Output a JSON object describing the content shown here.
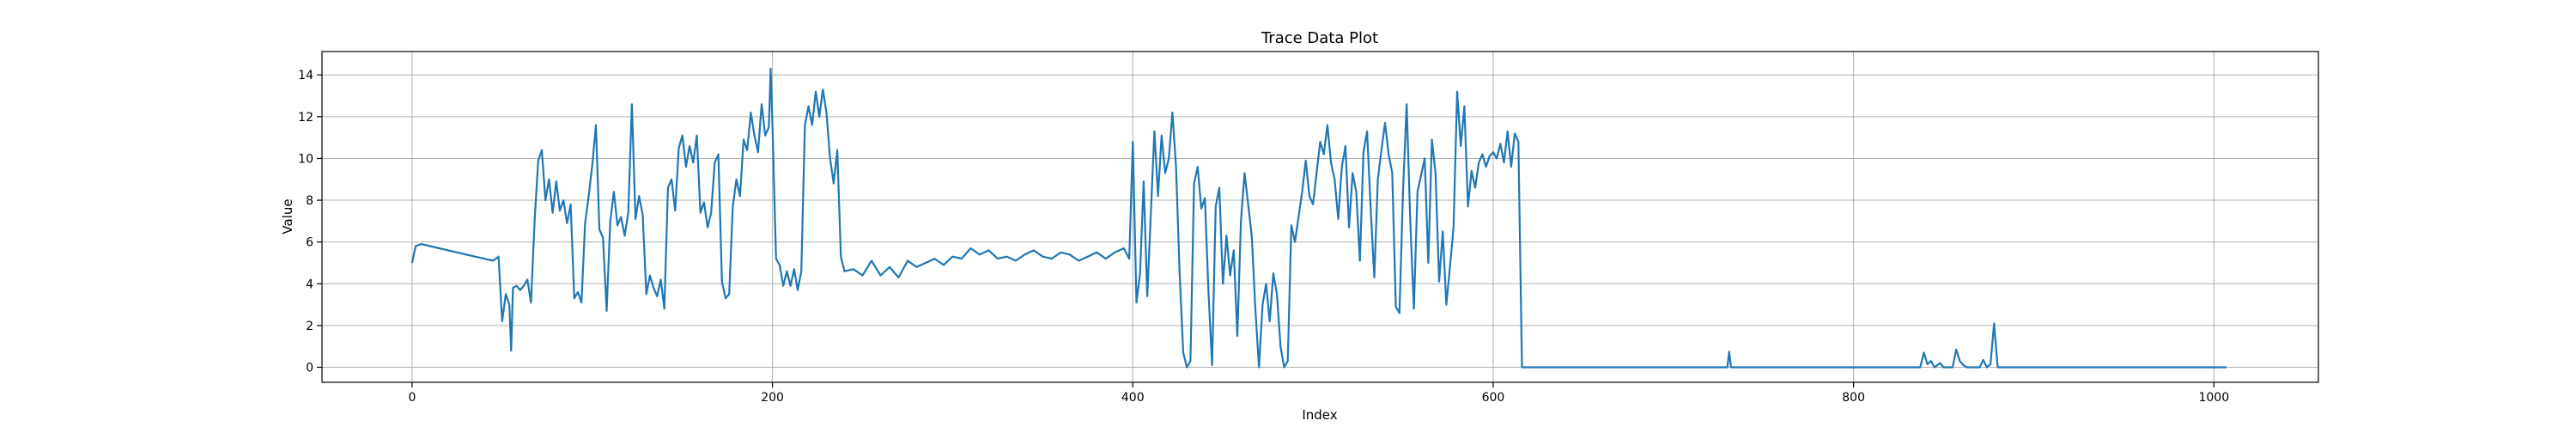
{
  "chart_data": {
    "type": "line",
    "title": "Trace Data Plot",
    "xlabel": "Index",
    "ylabel": "Value",
    "xlim": [
      -50,
      1058
    ],
    "ylim": [
      -0.72,
      15.12
    ],
    "x_ticks": [
      0,
      200,
      400,
      600,
      800,
      1000
    ],
    "y_ticks": [
      0,
      2,
      4,
      6,
      8,
      10,
      12,
      14
    ],
    "grid": true,
    "legend": "none",
    "series": [
      {
        "color": "#1f77b4",
        "points": [
          [
            0,
            5.0
          ],
          [
            2,
            5.8
          ],
          [
            5,
            5.9
          ],
          [
            10,
            5.8
          ],
          [
            15,
            5.7
          ],
          [
            20,
            5.6
          ],
          [
            25,
            5.5
          ],
          [
            30,
            5.4
          ],
          [
            35,
            5.3
          ],
          [
            40,
            5.2
          ],
          [
            45,
            5.1
          ],
          [
            48,
            5.3
          ],
          [
            50,
            2.2
          ],
          [
            52,
            3.5
          ],
          [
            54,
            3.0
          ],
          [
            55,
            0.8
          ],
          [
            56,
            3.8
          ],
          [
            58,
            3.9
          ],
          [
            60,
            3.7
          ],
          [
            62,
            3.9
          ],
          [
            64,
            4.2
          ],
          [
            66,
            3.1
          ],
          [
            68,
            7.0
          ],
          [
            70,
            9.9
          ],
          [
            72,
            10.4
          ],
          [
            74,
            8.0
          ],
          [
            76,
            9.0
          ],
          [
            78,
            7.4
          ],
          [
            80,
            8.9
          ],
          [
            82,
            7.5
          ],
          [
            84,
            8.0
          ],
          [
            86,
            6.9
          ],
          [
            88,
            7.8
          ],
          [
            90,
            3.3
          ],
          [
            92,
            3.6
          ],
          [
            94,
            3.1
          ],
          [
            96,
            6.9
          ],
          [
            98,
            8.2
          ],
          [
            100,
            9.7
          ],
          [
            102,
            11.6
          ],
          [
            104,
            6.6
          ],
          [
            106,
            6.2
          ],
          [
            108,
            2.7
          ],
          [
            110,
            7.0
          ],
          [
            112,
            8.4
          ],
          [
            114,
            6.8
          ],
          [
            116,
            7.2
          ],
          [
            118,
            6.3
          ],
          [
            120,
            7.4
          ],
          [
            122,
            12.6
          ],
          [
            124,
            7.1
          ],
          [
            126,
            8.2
          ],
          [
            128,
            7.3
          ],
          [
            130,
            3.5
          ],
          [
            132,
            4.4
          ],
          [
            134,
            3.8
          ],
          [
            136,
            3.4
          ],
          [
            138,
            4.2
          ],
          [
            140,
            2.8
          ],
          [
            142,
            8.6
          ],
          [
            144,
            9.0
          ],
          [
            146,
            7.5
          ],
          [
            148,
            10.5
          ],
          [
            150,
            11.1
          ],
          [
            152,
            9.6
          ],
          [
            154,
            10.6
          ],
          [
            156,
            9.8
          ],
          [
            158,
            11.1
          ],
          [
            160,
            7.4
          ],
          [
            162,
            7.9
          ],
          [
            164,
            6.7
          ],
          [
            166,
            7.4
          ],
          [
            168,
            9.8
          ],
          [
            170,
            10.2
          ],
          [
            172,
            4.1
          ],
          [
            174,
            3.3
          ],
          [
            176,
            3.5
          ],
          [
            178,
            7.7
          ],
          [
            180,
            9.0
          ],
          [
            182,
            8.2
          ],
          [
            184,
            10.9
          ],
          [
            186,
            10.4
          ],
          [
            188,
            12.2
          ],
          [
            190,
            11.1
          ],
          [
            192,
            10.3
          ],
          [
            194,
            12.6
          ],
          [
            196,
            11.1
          ],
          [
            198,
            11.5
          ],
          [
            199,
            14.3
          ],
          [
            200,
            11.6
          ],
          [
            202,
            5.2
          ],
          [
            204,
            4.9
          ],
          [
            206,
            3.9
          ],
          [
            208,
            4.6
          ],
          [
            210,
            3.9
          ],
          [
            212,
            4.7
          ],
          [
            214,
            3.7
          ],
          [
            216,
            4.6
          ],
          [
            218,
            11.6
          ],
          [
            220,
            12.5
          ],
          [
            222,
            11.6
          ],
          [
            224,
            13.2
          ],
          [
            226,
            12.0
          ],
          [
            228,
            13.3
          ],
          [
            230,
            12.2
          ],
          [
            232,
            10.0
          ],
          [
            234,
            8.8
          ],
          [
            236,
            10.4
          ],
          [
            238,
            5.3
          ],
          [
            240,
            4.6
          ],
          [
            245,
            4.7
          ],
          [
            250,
            4.4
          ],
          [
            255,
            5.1
          ],
          [
            260,
            4.4
          ],
          [
            265,
            4.8
          ],
          [
            270,
            4.3
          ],
          [
            275,
            5.1
          ],
          [
            280,
            4.8
          ],
          [
            285,
            5.0
          ],
          [
            290,
            5.2
          ],
          [
            295,
            4.9
          ],
          [
            300,
            5.3
          ],
          [
            305,
            5.2
          ],
          [
            310,
            5.7
          ],
          [
            315,
            5.4
          ],
          [
            320,
            5.6
          ],
          [
            325,
            5.2
          ],
          [
            330,
            5.3
          ],
          [
            335,
            5.1
          ],
          [
            340,
            5.4
          ],
          [
            345,
            5.6
          ],
          [
            350,
            5.3
          ],
          [
            355,
            5.2
          ],
          [
            360,
            5.5
          ],
          [
            365,
            5.4
          ],
          [
            370,
            5.1
          ],
          [
            375,
            5.3
          ],
          [
            380,
            5.5
          ],
          [
            385,
            5.2
          ],
          [
            390,
            5.5
          ],
          [
            395,
            5.7
          ],
          [
            398,
            5.2
          ],
          [
            400,
            10.8
          ],
          [
            402,
            3.1
          ],
          [
            404,
            4.5
          ],
          [
            406,
            8.9
          ],
          [
            408,
            3.4
          ],
          [
            410,
            7.4
          ],
          [
            412,
            11.3
          ],
          [
            414,
            8.2
          ],
          [
            416,
            11.1
          ],
          [
            418,
            9.3
          ],
          [
            420,
            10.0
          ],
          [
            422,
            12.2
          ],
          [
            424,
            9.6
          ],
          [
            426,
            4.5
          ],
          [
            428,
            0.7
          ],
          [
            430,
            0.0
          ],
          [
            432,
            0.3
          ],
          [
            434,
            8.8
          ],
          [
            436,
            9.6
          ],
          [
            438,
            7.6
          ],
          [
            440,
            8.1
          ],
          [
            442,
            3.6
          ],
          [
            444,
            0.1
          ],
          [
            446,
            7.7
          ],
          [
            448,
            8.6
          ],
          [
            450,
            4.0
          ],
          [
            452,
            6.3
          ],
          [
            454,
            4.4
          ],
          [
            456,
            5.6
          ],
          [
            458,
            1.5
          ],
          [
            460,
            7.0
          ],
          [
            462,
            9.3
          ],
          [
            464,
            7.8
          ],
          [
            466,
            6.3
          ],
          [
            468,
            2.8
          ],
          [
            470,
            0.0
          ],
          [
            472,
            3.0
          ],
          [
            474,
            4.0
          ],
          [
            476,
            2.2
          ],
          [
            478,
            4.5
          ],
          [
            480,
            3.5
          ],
          [
            482,
            1.0
          ],
          [
            484,
            0.0
          ],
          [
            486,
            0.3
          ],
          [
            488,
            6.8
          ],
          [
            490,
            6.0
          ],
          [
            492,
            7.2
          ],
          [
            494,
            8.4
          ],
          [
            496,
            9.9
          ],
          [
            498,
            8.2
          ],
          [
            500,
            7.8
          ],
          [
            502,
            9.3
          ],
          [
            504,
            10.8
          ],
          [
            506,
            10.2
          ],
          [
            508,
            11.6
          ],
          [
            510,
            9.8
          ],
          [
            512,
            9.0
          ],
          [
            514,
            7.1
          ],
          [
            516,
            9.6
          ],
          [
            518,
            10.6
          ],
          [
            520,
            6.7
          ],
          [
            522,
            9.3
          ],
          [
            524,
            8.4
          ],
          [
            526,
            5.1
          ],
          [
            528,
            10.3
          ],
          [
            530,
            11.3
          ],
          [
            532,
            7.6
          ],
          [
            534,
            4.3
          ],
          [
            536,
            9.0
          ],
          [
            538,
            10.4
          ],
          [
            540,
            11.7
          ],
          [
            542,
            10.2
          ],
          [
            544,
            9.3
          ],
          [
            546,
            2.9
          ],
          [
            548,
            2.6
          ],
          [
            550,
            8.5
          ],
          [
            552,
            12.6
          ],
          [
            554,
            7.0
          ],
          [
            556,
            2.8
          ],
          [
            558,
            8.4
          ],
          [
            560,
            9.2
          ],
          [
            562,
            10.0
          ],
          [
            564,
            5.0
          ],
          [
            566,
            10.9
          ],
          [
            568,
            9.3
          ],
          [
            570,
            4.1
          ],
          [
            572,
            6.5
          ],
          [
            574,
            3.0
          ],
          [
            576,
            4.8
          ],
          [
            578,
            6.7
          ],
          [
            580,
            13.2
          ],
          [
            582,
            10.6
          ],
          [
            584,
            12.5
          ],
          [
            586,
            7.7
          ],
          [
            588,
            9.4
          ],
          [
            590,
            8.6
          ],
          [
            592,
            9.8
          ],
          [
            594,
            10.2
          ],
          [
            596,
            9.6
          ],
          [
            598,
            10.1
          ],
          [
            600,
            10.3
          ],
          [
            602,
            10.0
          ],
          [
            604,
            10.7
          ],
          [
            606,
            9.8
          ],
          [
            608,
            11.3
          ],
          [
            610,
            9.6
          ],
          [
            612,
            11.2
          ],
          [
            614,
            10.8
          ],
          [
            616,
            0.0
          ],
          [
            620,
            0.0
          ],
          [
            680,
            0.0
          ],
          [
            730,
            0.0
          ],
          [
            731,
            0.75
          ],
          [
            732,
            0.0
          ],
          [
            780,
            0.0
          ],
          [
            837,
            0.0
          ],
          [
            839,
            0.7
          ],
          [
            841,
            0.15
          ],
          [
            843,
            0.3
          ],
          [
            845,
            0.0
          ],
          [
            848,
            0.2
          ],
          [
            850,
            0.0
          ],
          [
            855,
            0.0
          ],
          [
            857,
            0.85
          ],
          [
            859,
            0.3
          ],
          [
            861,
            0.1
          ],
          [
            863,
            0.0
          ],
          [
            870,
            0.0
          ],
          [
            872,
            0.35
          ],
          [
            874,
            0.0
          ],
          [
            876,
            0.15
          ],
          [
            878,
            2.1
          ],
          [
            880,
            0.0
          ],
          [
            900,
            0.0
          ],
          [
            950,
            0.0
          ],
          [
            1007,
            0.0
          ]
        ]
      }
    ]
  }
}
